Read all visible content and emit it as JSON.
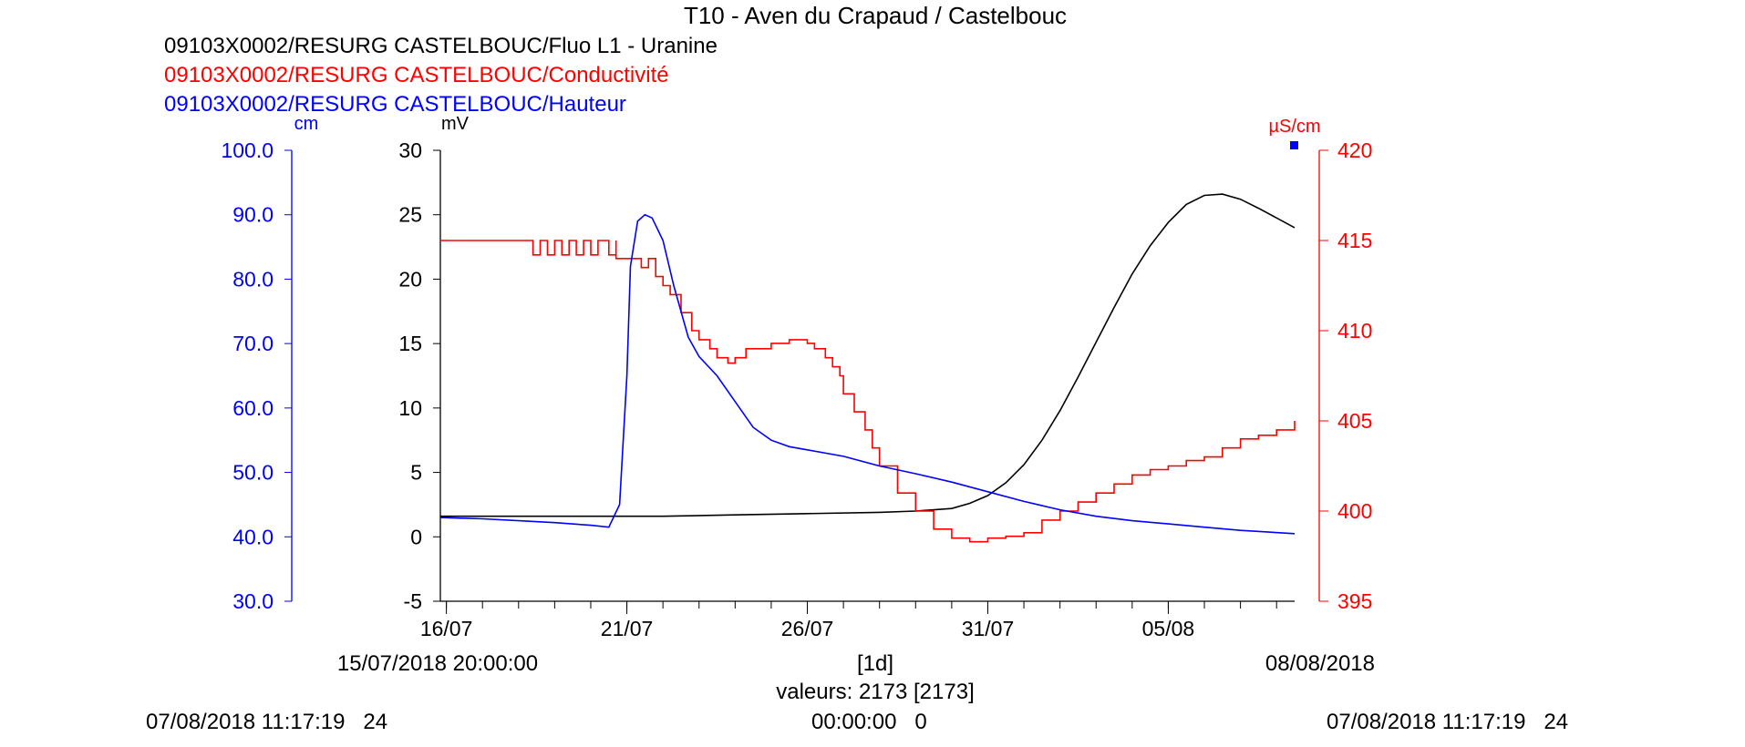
{
  "colors": {
    "black": "#000000",
    "red": "#ff0000",
    "blue": "#0000ff"
  },
  "chart_data": {
    "type": "line",
    "title": "T10 - Aven du Crapaud / Castelbouc",
    "legend": [
      {
        "label": "09103X0002/RESURG CASTELBOUC/Fluo L1 - Uranine",
        "color": "#000000"
      },
      {
        "label": "09103X0002/RESURG CASTELBOUC/Conductivité",
        "color": "#ff0000"
      },
      {
        "label": "09103X0002/RESURG CASTELBOUC/Hauteur",
        "color": "#0000ff"
      }
    ],
    "x_axis": {
      "start_day": 15.833,
      "end_day": 39.5,
      "tick_days": [
        16,
        21,
        26,
        31,
        36
      ],
      "tick_labels": [
        "16/07",
        "21/07",
        "26/07",
        "31/07",
        "05/08"
      ],
      "start_label": "15/07/2018 20:00:00",
      "end_label": "08/08/2018",
      "step_label": "[1d]",
      "count_label": "valeurs: 2173 [2173]"
    },
    "y_axes": {
      "hauteur": {
        "unit": "cm",
        "min": 30,
        "max": 100,
        "ticks": [
          "100.0",
          "90.0",
          "80.0",
          "70.0",
          "60.0",
          "50.0",
          "40.0",
          "30.0"
        ]
      },
      "fluo": {
        "unit": "mV",
        "min": -5,
        "max": 30,
        "ticks": [
          "30",
          "25",
          "20",
          "15",
          "10",
          "5",
          "0",
          "-5"
        ]
      },
      "conductivite": {
        "unit": "µS/cm",
        "min": 395,
        "max": 420,
        "ticks": [
          "420",
          "415",
          "410",
          "405",
          "400",
          "395"
        ]
      }
    },
    "series": [
      {
        "name": "Fluo L1 - Uranine",
        "axis": "fluo",
        "color": "#000000",
        "x": [
          15.83,
          18,
          20,
          21,
          22,
          24,
          26,
          28,
          29,
          30,
          30.5,
          31,
          31.5,
          32,
          32.5,
          33,
          33.5,
          34,
          34.5,
          35,
          35.5,
          36,
          36.5,
          37,
          37.5,
          38,
          38.5,
          39.5
        ],
        "y": [
          1.6,
          1.6,
          1.6,
          1.6,
          1.6,
          1.7,
          1.8,
          1.9,
          2.0,
          2.2,
          2.6,
          3.2,
          4.2,
          5.6,
          7.5,
          9.8,
          12.4,
          15.1,
          17.8,
          20.4,
          22.6,
          24.4,
          25.8,
          26.5,
          26.6,
          26.2,
          25.5,
          24.0
        ]
      },
      {
        "name": "Conductivité",
        "axis": "conductivite",
        "color": "#ff0000",
        "x": [
          15.83,
          18.4,
          18.4,
          18.6,
          18.8,
          19.0,
          19.2,
          19.4,
          19.6,
          19.8,
          20.0,
          20.2,
          20.5,
          20.7,
          20.7,
          21.3,
          21.4,
          21.6,
          21.8,
          22.0,
          22.2,
          22.5,
          22.8,
          23.0,
          23.3,
          23.5,
          23.8,
          24.0,
          24.3,
          24.5,
          25.0,
          25.5,
          26.0,
          26.2,
          26.5,
          26.7,
          26.9,
          27.0,
          27.3,
          27.6,
          27.8,
          28.0,
          28.5,
          29.0,
          29.5,
          30.0,
          30.5,
          31.0,
          31.5,
          32.0,
          32.5,
          33.0,
          33.5,
          34.0,
          34.5,
          35.0,
          35.5,
          36.0,
          36.5,
          37.0,
          37.5,
          38.0,
          38.5,
          39.0,
          39.5
        ],
        "y": [
          415,
          415,
          414.2,
          415,
          414.2,
          415,
          414.2,
          415,
          414.2,
          415,
          414.2,
          415,
          414.2,
          415,
          414,
          414,
          413.5,
          414,
          413,
          412.5,
          412,
          411,
          410,
          409.5,
          409,
          408.5,
          408.2,
          408.5,
          409,
          409,
          409.3,
          409.5,
          409.3,
          409,
          408.5,
          408,
          407.5,
          406.5,
          405.5,
          404.5,
          403.5,
          402.5,
          401,
          400,
          399,
          398.5,
          398.3,
          398.5,
          398.6,
          398.8,
          399.5,
          400,
          400.5,
          401,
          401.5,
          402,
          402.3,
          402.5,
          402.8,
          403,
          403.5,
          404,
          404.2,
          404.5,
          405
        ]
      },
      {
        "name": "Hauteur",
        "axis": "hauteur",
        "color": "#0000ff",
        "x": [
          15.83,
          17,
          18,
          19,
          20,
          20.5,
          20.8,
          21.0,
          21.1,
          21.3,
          21.5,
          21.7,
          22.0,
          22.3,
          22.7,
          23.0,
          23.5,
          24.0,
          24.5,
          25.0,
          25.5,
          26,
          27,
          28,
          29,
          30,
          31,
          32,
          33,
          34,
          35,
          36,
          37,
          38,
          39.5
        ],
        "y": [
          43.0,
          42.8,
          42.5,
          42.2,
          41.8,
          41.5,
          45.0,
          65.0,
          82.0,
          89.0,
          90.0,
          89.5,
          86.0,
          79.0,
          71.0,
          68.0,
          65.0,
          61.0,
          57.0,
          55.0,
          54.0,
          53.5,
          52.5,
          51.0,
          49.8,
          48.5,
          47.0,
          45.5,
          44.2,
          43.2,
          42.5,
          42.0,
          41.5,
          41.0,
          40.5
        ]
      }
    ],
    "footer": {
      "left": "07/08/2018 11:17:19   24",
      "center": "00:00:00   0",
      "right": "07/08/2018 11:17:19   24"
    }
  }
}
